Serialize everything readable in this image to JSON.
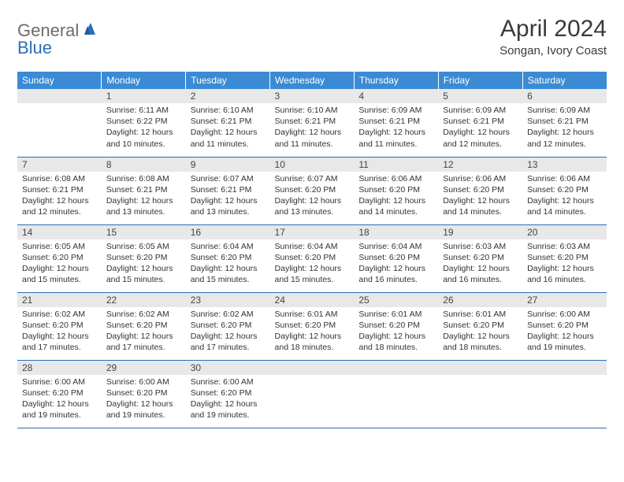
{
  "brand": {
    "word1": "General",
    "word2": "Blue",
    "word1_color": "#6b6b6b",
    "word2_color": "#2a6fb5",
    "icon_color": "#2a6fb5"
  },
  "title": "April 2024",
  "location": "Songan, Ivory Coast",
  "colors": {
    "header_bg": "#3b8bd4",
    "header_text": "#ffffff",
    "daynum_bg": "#e8e8e8",
    "row_divider": "#2a6fb5",
    "body_text": "#333333",
    "page_bg": "#ffffff"
  },
  "typography": {
    "title_fontsize": 30,
    "location_fontsize": 15,
    "weekday_fontsize": 12,
    "daynum_fontsize": 12,
    "cell_fontsize": 10.5
  },
  "layout": {
    "start_weekday": "Sunday",
    "first_day_column": 1,
    "days_in_month": 30,
    "columns": 7,
    "rows": 5
  },
  "weekday_labels": [
    "Sunday",
    "Monday",
    "Tuesday",
    "Wednesday",
    "Thursday",
    "Friday",
    "Saturday"
  ],
  "days": [
    {
      "n": 1,
      "sunrise": "6:11 AM",
      "sunset": "6:22 PM",
      "daylight": "12 hours and 10 minutes."
    },
    {
      "n": 2,
      "sunrise": "6:10 AM",
      "sunset": "6:21 PM",
      "daylight": "12 hours and 11 minutes."
    },
    {
      "n": 3,
      "sunrise": "6:10 AM",
      "sunset": "6:21 PM",
      "daylight": "12 hours and 11 minutes."
    },
    {
      "n": 4,
      "sunrise": "6:09 AM",
      "sunset": "6:21 PM",
      "daylight": "12 hours and 11 minutes."
    },
    {
      "n": 5,
      "sunrise": "6:09 AM",
      "sunset": "6:21 PM",
      "daylight": "12 hours and 12 minutes."
    },
    {
      "n": 6,
      "sunrise": "6:09 AM",
      "sunset": "6:21 PM",
      "daylight": "12 hours and 12 minutes."
    },
    {
      "n": 7,
      "sunrise": "6:08 AM",
      "sunset": "6:21 PM",
      "daylight": "12 hours and 12 minutes."
    },
    {
      "n": 8,
      "sunrise": "6:08 AM",
      "sunset": "6:21 PM",
      "daylight": "12 hours and 13 minutes."
    },
    {
      "n": 9,
      "sunrise": "6:07 AM",
      "sunset": "6:21 PM",
      "daylight": "12 hours and 13 minutes."
    },
    {
      "n": 10,
      "sunrise": "6:07 AM",
      "sunset": "6:20 PM",
      "daylight": "12 hours and 13 minutes."
    },
    {
      "n": 11,
      "sunrise": "6:06 AM",
      "sunset": "6:20 PM",
      "daylight": "12 hours and 14 minutes."
    },
    {
      "n": 12,
      "sunrise": "6:06 AM",
      "sunset": "6:20 PM",
      "daylight": "12 hours and 14 minutes."
    },
    {
      "n": 13,
      "sunrise": "6:06 AM",
      "sunset": "6:20 PM",
      "daylight": "12 hours and 14 minutes."
    },
    {
      "n": 14,
      "sunrise": "6:05 AM",
      "sunset": "6:20 PM",
      "daylight": "12 hours and 15 minutes."
    },
    {
      "n": 15,
      "sunrise": "6:05 AM",
      "sunset": "6:20 PM",
      "daylight": "12 hours and 15 minutes."
    },
    {
      "n": 16,
      "sunrise": "6:04 AM",
      "sunset": "6:20 PM",
      "daylight": "12 hours and 15 minutes."
    },
    {
      "n": 17,
      "sunrise": "6:04 AM",
      "sunset": "6:20 PM",
      "daylight": "12 hours and 15 minutes."
    },
    {
      "n": 18,
      "sunrise": "6:04 AM",
      "sunset": "6:20 PM",
      "daylight": "12 hours and 16 minutes."
    },
    {
      "n": 19,
      "sunrise": "6:03 AM",
      "sunset": "6:20 PM",
      "daylight": "12 hours and 16 minutes."
    },
    {
      "n": 20,
      "sunrise": "6:03 AM",
      "sunset": "6:20 PM",
      "daylight": "12 hours and 16 minutes."
    },
    {
      "n": 21,
      "sunrise": "6:02 AM",
      "sunset": "6:20 PM",
      "daylight": "12 hours and 17 minutes."
    },
    {
      "n": 22,
      "sunrise": "6:02 AM",
      "sunset": "6:20 PM",
      "daylight": "12 hours and 17 minutes."
    },
    {
      "n": 23,
      "sunrise": "6:02 AM",
      "sunset": "6:20 PM",
      "daylight": "12 hours and 17 minutes."
    },
    {
      "n": 24,
      "sunrise": "6:01 AM",
      "sunset": "6:20 PM",
      "daylight": "12 hours and 18 minutes."
    },
    {
      "n": 25,
      "sunrise": "6:01 AM",
      "sunset": "6:20 PM",
      "daylight": "12 hours and 18 minutes."
    },
    {
      "n": 26,
      "sunrise": "6:01 AM",
      "sunset": "6:20 PM",
      "daylight": "12 hours and 18 minutes."
    },
    {
      "n": 27,
      "sunrise": "6:00 AM",
      "sunset": "6:20 PM",
      "daylight": "12 hours and 19 minutes."
    },
    {
      "n": 28,
      "sunrise": "6:00 AM",
      "sunset": "6:20 PM",
      "daylight": "12 hours and 19 minutes."
    },
    {
      "n": 29,
      "sunrise": "6:00 AM",
      "sunset": "6:20 PM",
      "daylight": "12 hours and 19 minutes."
    },
    {
      "n": 30,
      "sunrise": "6:00 AM",
      "sunset": "6:20 PM",
      "daylight": "12 hours and 19 minutes."
    }
  ],
  "labels": {
    "sunrise_prefix": "Sunrise: ",
    "sunset_prefix": "Sunset: ",
    "daylight_prefix": "Daylight: "
  }
}
